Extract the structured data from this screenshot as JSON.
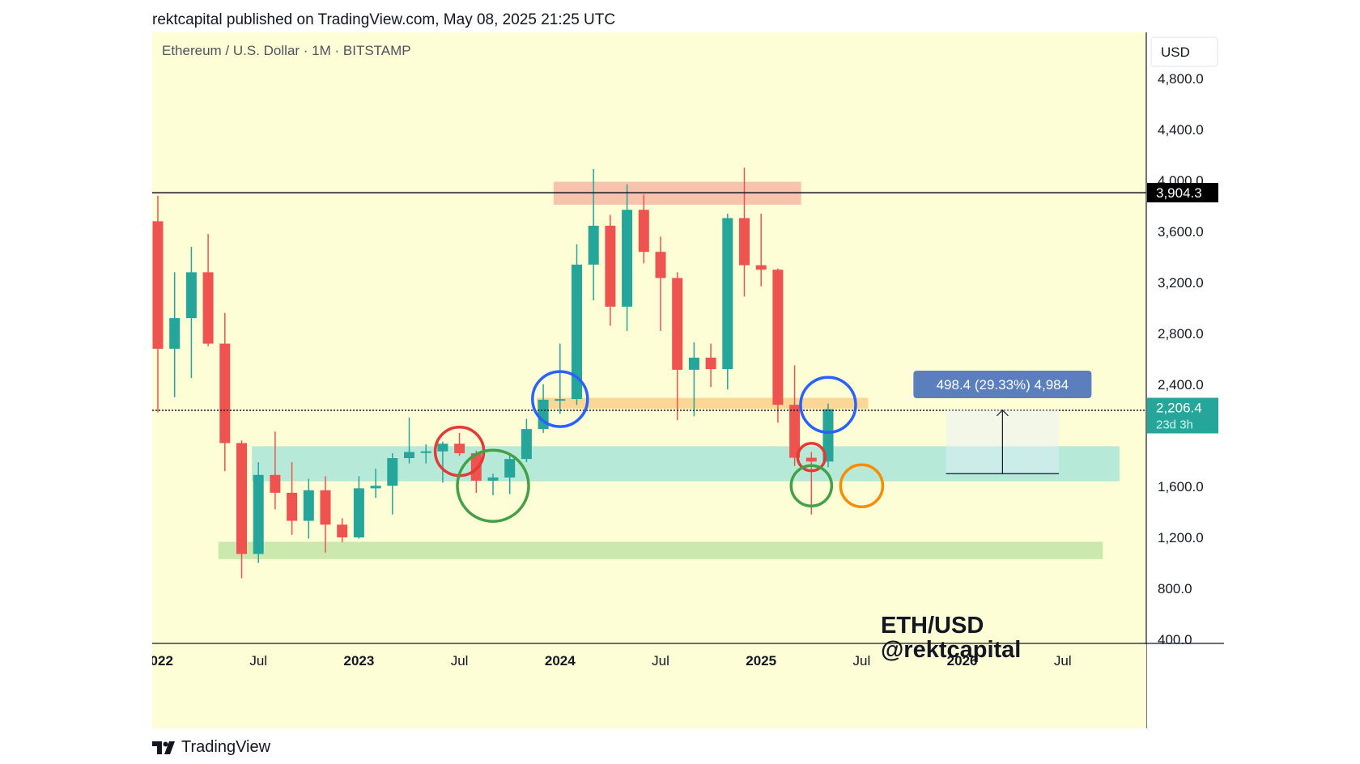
{
  "header": {
    "published_text": "rektcapital published on TradingView.com, May 08, 2025 21:25 UTC"
  },
  "symbol_title": "Ethereum / U.S. Dollar · 1M · BITSTAMP",
  "currency_label": "USD",
  "watermark": {
    "line1": "ETH/USD",
    "line2": "@rektcapital"
  },
  "footer": {
    "brand": "TradingView"
  },
  "colors": {
    "background": "#fdfdd6",
    "up": "#26a69a",
    "down": "#ef5350",
    "resistance_zone": "#f6b9a4",
    "support_zone_teal": "#aee7d8",
    "support_zone_green": "#c5e5a8",
    "orange_zone": "#fbd38e",
    "circle_blue": "#2962ff",
    "circle_red": "#e53935",
    "circle_green": "#43a047",
    "circle_orange": "#fb8c00",
    "measure_box": "#5b7fbd"
  },
  "chart_data": {
    "type": "candlestick",
    "title": "Ethereum / U.S. Dollar · 1M · BITSTAMP",
    "ylabel": "USD",
    "ylim": [
      400,
      5100
    ],
    "y_ticks": [
      400,
      800,
      1200,
      1600,
      2000,
      2400,
      2800,
      3200,
      3600,
      4000,
      4400,
      4800
    ],
    "y_tick_labels": [
      "400.0",
      "800.0",
      "1,200.0",
      "1,600.0",
      "2,000.0",
      "2,400.0",
      "2,800.0",
      "3,200.0",
      "3,600.0",
      "4,000.0",
      "4,400.0",
      "4,800.0"
    ],
    "x_ticks": [
      {
        "label": "2022",
        "date": "2022-01",
        "bold": true
      },
      {
        "label": "Jul",
        "date": "2022-07",
        "bold": false
      },
      {
        "label": "2023",
        "date": "2023-01",
        "bold": true
      },
      {
        "label": "Jul",
        "date": "2023-07",
        "bold": false
      },
      {
        "label": "2024",
        "date": "2024-01",
        "bold": true
      },
      {
        "label": "Jul",
        "date": "2024-07",
        "bold": false
      },
      {
        "label": "2025",
        "date": "2025-01",
        "bold": true
      },
      {
        "label": "Jul",
        "date": "2025-07",
        "bold": false
      },
      {
        "label": "2026",
        "date": "2026-01",
        "bold": true
      },
      {
        "label": "Jul",
        "date": "2026-07",
        "bold": false
      }
    ],
    "candles": [
      {
        "date": "2022-01",
        "o": 3680,
        "h": 3880,
        "l": 2180,
        "c": 2680
      },
      {
        "date": "2022-02",
        "o": 2680,
        "h": 3280,
        "l": 2300,
        "c": 2920
      },
      {
        "date": "2022-03",
        "o": 2920,
        "h": 3480,
        "l": 2450,
        "c": 3280
      },
      {
        "date": "2022-04",
        "o": 3280,
        "h": 3580,
        "l": 2700,
        "c": 2720
      },
      {
        "date": "2022-05",
        "o": 2720,
        "h": 2960,
        "l": 1720,
        "c": 1940
      },
      {
        "date": "2022-06",
        "o": 1940,
        "h": 1960,
        "l": 880,
        "c": 1070
      },
      {
        "date": "2022-07",
        "o": 1070,
        "h": 1790,
        "l": 1000,
        "c": 1690
      },
      {
        "date": "2022-08",
        "o": 1690,
        "h": 2030,
        "l": 1420,
        "c": 1550
      },
      {
        "date": "2022-09",
        "o": 1550,
        "h": 1790,
        "l": 1220,
        "c": 1330
      },
      {
        "date": "2022-10",
        "o": 1330,
        "h": 1660,
        "l": 1190,
        "c": 1570
      },
      {
        "date": "2022-11",
        "o": 1570,
        "h": 1680,
        "l": 1080,
        "c": 1300
      },
      {
        "date": "2022-12",
        "o": 1300,
        "h": 1350,
        "l": 1160,
        "c": 1200
      },
      {
        "date": "2023-01",
        "o": 1200,
        "h": 1680,
        "l": 1190,
        "c": 1585
      },
      {
        "date": "2023-02",
        "o": 1585,
        "h": 1740,
        "l": 1510,
        "c": 1605
      },
      {
        "date": "2023-03",
        "o": 1605,
        "h": 1860,
        "l": 1380,
        "c": 1822
      },
      {
        "date": "2023-04",
        "o": 1822,
        "h": 2140,
        "l": 1780,
        "c": 1870
      },
      {
        "date": "2023-05",
        "o": 1870,
        "h": 1930,
        "l": 1780,
        "c": 1875
      },
      {
        "date": "2023-06",
        "o": 1875,
        "h": 1950,
        "l": 1630,
        "c": 1935
      },
      {
        "date": "2023-07",
        "o": 1935,
        "h": 2020,
        "l": 1840,
        "c": 1860
      },
      {
        "date": "2023-08",
        "o": 1860,
        "h": 1880,
        "l": 1550,
        "c": 1645
      },
      {
        "date": "2023-09",
        "o": 1645,
        "h": 1700,
        "l": 1530,
        "c": 1670
      },
      {
        "date": "2023-10",
        "o": 1670,
        "h": 1860,
        "l": 1540,
        "c": 1815
      },
      {
        "date": "2023-11",
        "o": 1815,
        "h": 2130,
        "l": 1790,
        "c": 2050
      },
      {
        "date": "2023-12",
        "o": 2050,
        "h": 2400,
        "l": 2020,
        "c": 2280
      },
      {
        "date": "2024-01",
        "o": 2280,
        "h": 2720,
        "l": 2170,
        "c": 2285
      },
      {
        "date": "2024-02",
        "o": 2285,
        "h": 3500,
        "l": 2240,
        "c": 3340
      },
      {
        "date": "2024-03",
        "o": 3340,
        "h": 4090,
        "l": 3060,
        "c": 3645
      },
      {
        "date": "2024-04",
        "o": 3645,
        "h": 3730,
        "l": 2860,
        "c": 3010
      },
      {
        "date": "2024-05",
        "o": 3010,
        "h": 3970,
        "l": 2820,
        "c": 3770
      },
      {
        "date": "2024-06",
        "o": 3770,
        "h": 3890,
        "l": 3350,
        "c": 3440
      },
      {
        "date": "2024-07",
        "o": 3440,
        "h": 3560,
        "l": 2820,
        "c": 3235
      },
      {
        "date": "2024-08",
        "o": 3235,
        "h": 3280,
        "l": 2120,
        "c": 2515
      },
      {
        "date": "2024-09",
        "o": 2515,
        "h": 2730,
        "l": 2150,
        "c": 2610
      },
      {
        "date": "2024-10",
        "o": 2610,
        "h": 2720,
        "l": 2380,
        "c": 2520
      },
      {
        "date": "2024-11",
        "o": 2520,
        "h": 3740,
        "l": 2360,
        "c": 3705
      },
      {
        "date": "2024-12",
        "o": 3705,
        "h": 4100,
        "l": 3090,
        "c": 3335
      },
      {
        "date": "2025-01",
        "o": 3335,
        "h": 3740,
        "l": 3170,
        "c": 3300
      },
      {
        "date": "2025-02",
        "o": 3300,
        "h": 3310,
        "l": 2100,
        "c": 2240
      },
      {
        "date": "2025-03",
        "o": 2240,
        "h": 2550,
        "l": 1760,
        "c": 1825
      },
      {
        "date": "2025-04",
        "o": 1825,
        "h": 1870,
        "l": 1380,
        "c": 1795
      },
      {
        "date": "2025-05",
        "o": 1795,
        "h": 2250,
        "l": 1750,
        "c": 2206
      }
    ],
    "price_lines": [
      {
        "price": 3904.3,
        "label": "3,904.3",
        "style": "solid",
        "label_bg": "#000000"
      },
      {
        "price": 2196.9,
        "label": "2,196.9",
        "style": "dotted",
        "label_bg": "#000000"
      }
    ],
    "current_price": {
      "price": 2206.4,
      "label": "2,206.4",
      "countdown": "23d 3h",
      "label_bg": "#26a69a"
    },
    "zones": [
      {
        "name": "resistance",
        "x_from": "2024-01",
        "x_to": "2025-03",
        "y_low": 3810,
        "y_high": 3990
      },
      {
        "name": "orange-level",
        "x_from": "2023-12",
        "x_to": "2025-07",
        "y_low": 2210,
        "y_high": 2295
      },
      {
        "name": "teal-support",
        "x_from": "2022-07",
        "x_to": "2026-10",
        "y_low": 1640,
        "y_high": 1915
      },
      {
        "name": "green-support",
        "x_from": "2022-05",
        "x_to": "2026-09",
        "y_low": 1030,
        "y_high": 1165
      }
    ],
    "circles": [
      {
        "color": "blue",
        "date": "2024-01",
        "price": 2285
      },
      {
        "color": "blue",
        "date": "2025-05",
        "price": 2240
      },
      {
        "color": "red",
        "date": "2023-07",
        "price": 1875
      },
      {
        "color": "red",
        "date": "2025-04",
        "price": 1830
      },
      {
        "color": "green",
        "date": "2023-09",
        "price": 1605
      },
      {
        "color": "green",
        "date": "2025-04",
        "price": 1605
      },
      {
        "color": "orange",
        "date": "2025-07",
        "price": 1605
      }
    ],
    "measurement": {
      "label": "498.4 (29.33%) 4,984",
      "x_from": "2026-01",
      "x_to": "2026-06",
      "price_from": 1700,
      "price_to": 2198.4
    }
  }
}
